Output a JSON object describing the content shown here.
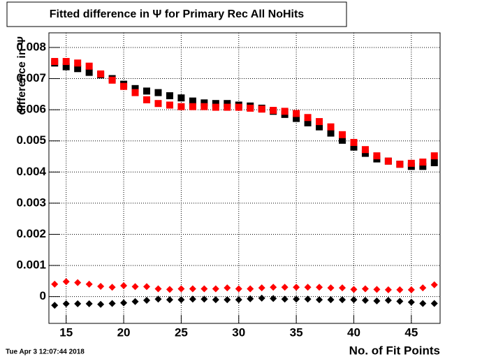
{
  "chart_data": {
    "type": "scatter",
    "title": "Fitted difference in  Ψ  for Primary Rec All NoHits",
    "y_label": "difference in Ψ",
    "x_label": "No. of Fit Points",
    "timestamp": "Tue Apr  3 12:07:44 2018",
    "x": [
      14,
      15,
      16,
      17,
      18,
      19,
      20,
      21,
      22,
      23,
      24,
      25,
      26,
      27,
      28,
      29,
      30,
      31,
      32,
      33,
      34,
      35,
      36,
      37,
      38,
      39,
      40,
      41,
      42,
      43,
      44,
      45,
      46,
      47
    ],
    "series": [
      {
        "color": "#000000",
        "marker": "square",
        "values": [
          0.0075,
          0.00738,
          0.00732,
          0.0072,
          0.00712,
          0.007,
          0.00682,
          0.00668,
          0.0066,
          0.00655,
          0.00645,
          0.00638,
          0.00628,
          0.00622,
          0.0062,
          0.0062,
          0.00615,
          0.00612,
          0.00605,
          0.00595,
          0.00585,
          0.00572,
          0.00558,
          0.00545,
          0.00525,
          0.00502,
          0.0048,
          0.0046,
          0.00442,
          0.00435,
          0.00425,
          0.00418,
          0.00418,
          0.0043
        ]
      },
      {
        "color": "#ff0000",
        "marker": "square",
        "values": [
          0.00755,
          0.00755,
          0.0075,
          0.0074,
          0.00715,
          0.00695,
          0.00675,
          0.00655,
          0.00632,
          0.0062,
          0.00615,
          0.0061,
          0.0061,
          0.0061,
          0.00608,
          0.00608,
          0.00608,
          0.00605,
          0.00602,
          0.00598,
          0.00595,
          0.00588,
          0.00575,
          0.00562,
          0.00545,
          0.0052,
          0.00495,
          0.00472,
          0.00452,
          0.00435,
          0.00425,
          0.00428,
          0.00432,
          0.00452
        ]
      },
      {
        "color": "#ff0000",
        "marker": "diamond",
        "values": [
          0.0004,
          0.00048,
          0.00045,
          0.0004,
          0.00033,
          0.0003,
          0.00035,
          0.00032,
          0.00032,
          0.00025,
          0.00023,
          0.00025,
          0.00025,
          0.00025,
          0.00025,
          0.00028,
          0.00025,
          0.00025,
          0.00028,
          0.0003,
          0.0003,
          0.0003,
          0.0003,
          0.0003,
          0.00028,
          0.00028,
          0.00023,
          0.00025,
          0.00023,
          0.00022,
          0.00022,
          0.00022,
          0.00028,
          0.00038
        ]
      },
      {
        "color": "#000000",
        "marker": "diamond",
        "values": [
          -0.00028,
          -0.00023,
          -0.00023,
          -0.00023,
          -0.00025,
          -0.00022,
          -0.0002,
          -0.00016,
          -0.00012,
          -8e-05,
          -0.0001,
          -0.0001,
          -8e-05,
          -8e-05,
          -0.0001,
          -0.0001,
          -0.0001,
          -7e-05,
          -5e-05,
          -6e-05,
          -8e-05,
          -8e-05,
          -8e-05,
          -0.0001,
          -0.0001,
          -0.0001,
          -0.0001,
          -0.00012,
          -0.00014,
          -0.00012,
          -0.00015,
          -0.00018,
          -0.00022,
          -0.00022
        ]
      }
    ],
    "xlim": [
      13.5,
      47.5
    ],
    "xticks": [
      15,
      20,
      25,
      30,
      35,
      40,
      45
    ],
    "ylim": [
      -0.00086,
      0.00847
    ],
    "yticks": [
      0,
      0.001,
      0.002,
      0.003,
      0.004,
      0.005,
      0.006,
      0.007,
      0.008
    ],
    "grid": true
  }
}
